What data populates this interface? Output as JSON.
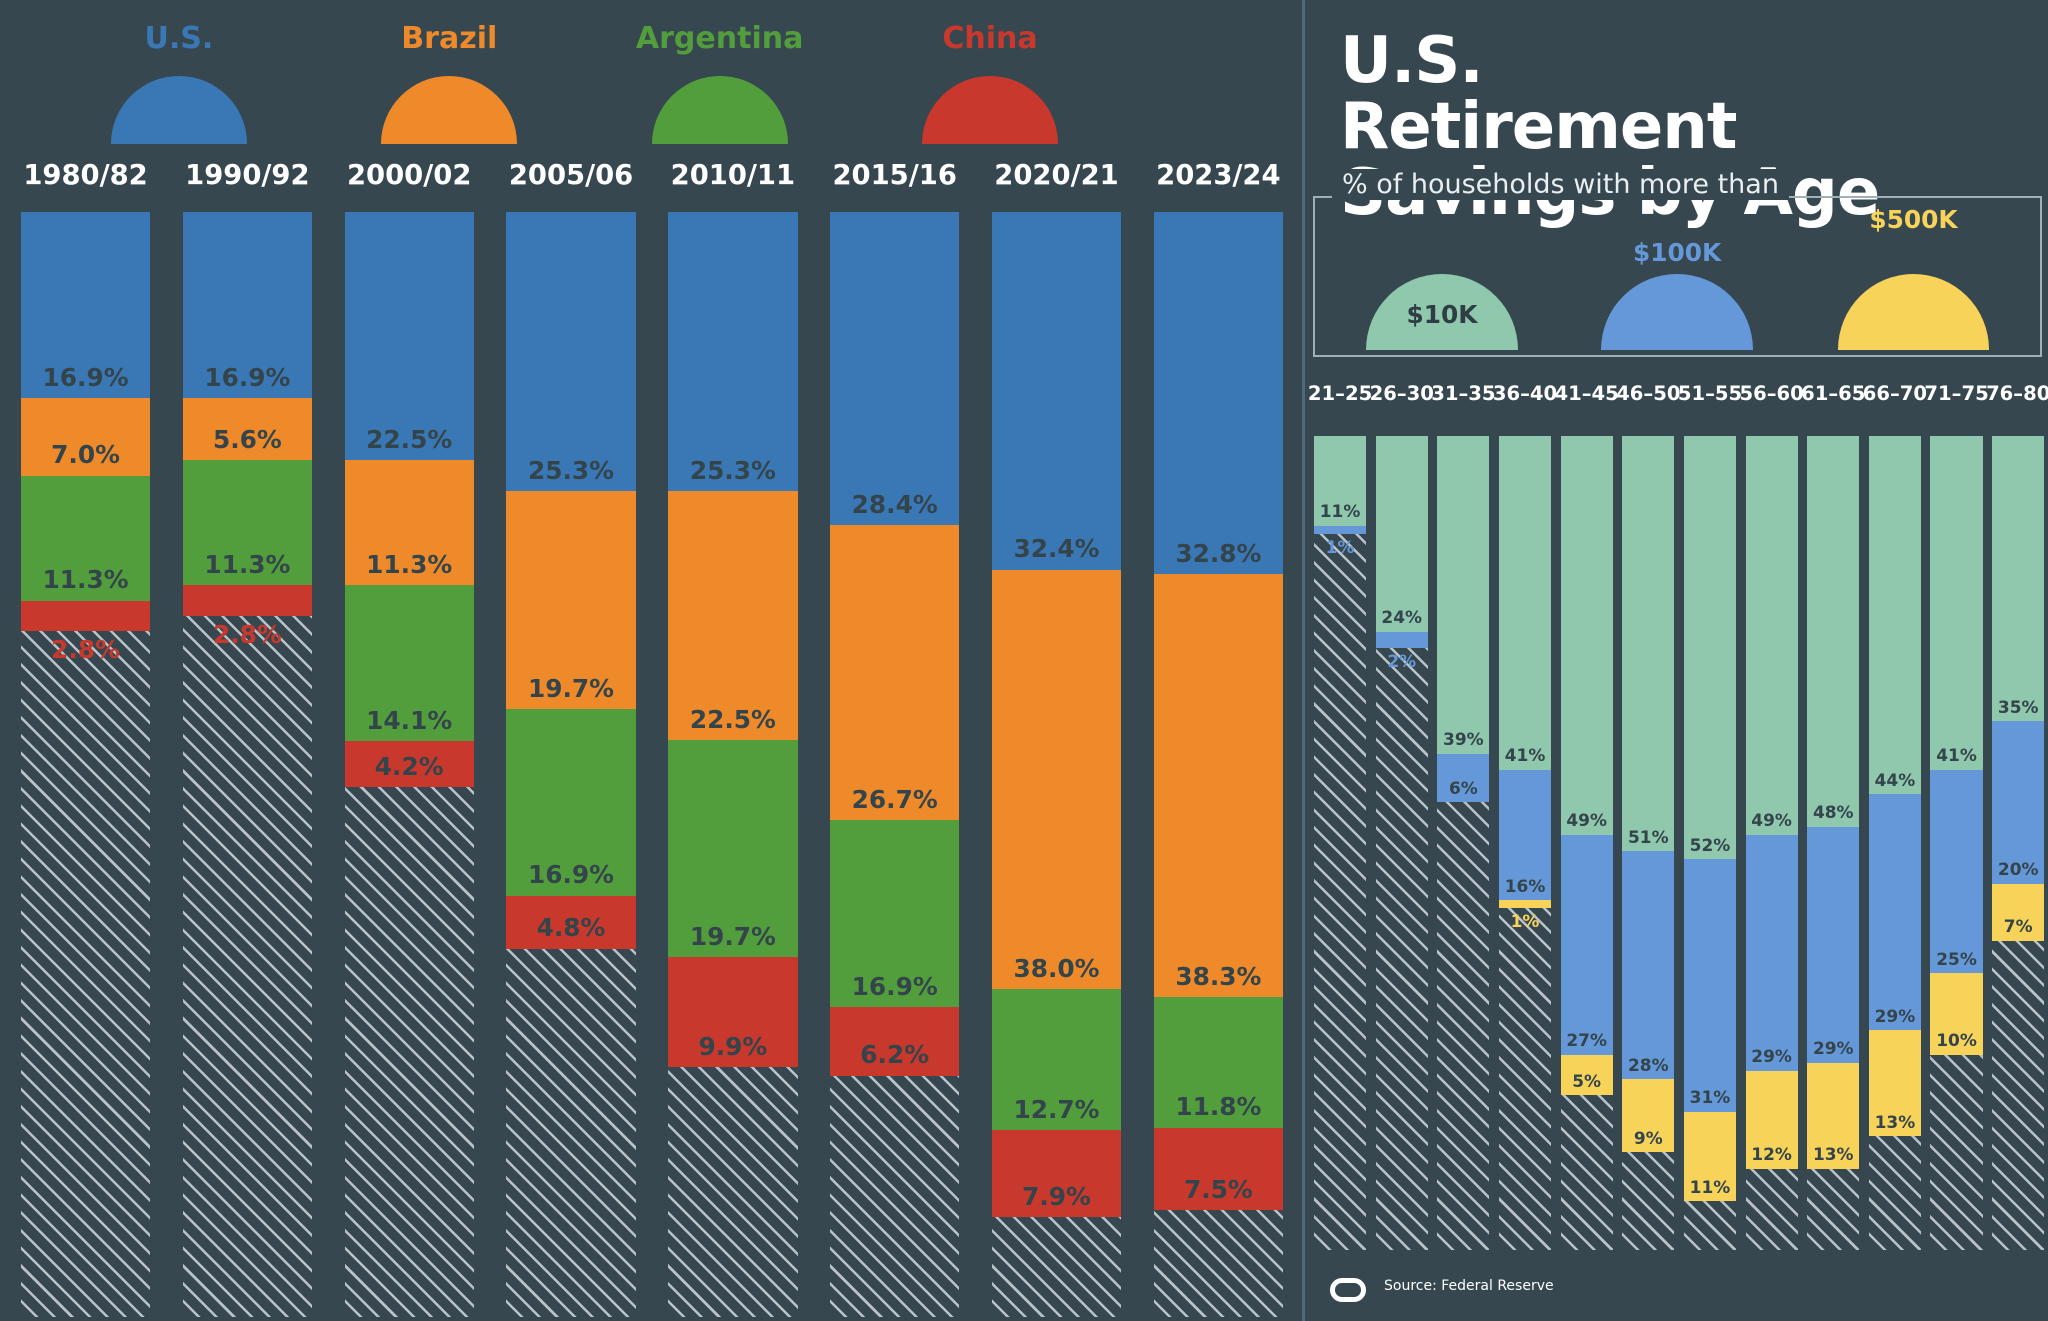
{
  "chart_data": [
    {
      "type": "stacked_bar",
      "categories": [
        "1980/82",
        "1990/92",
        "2000/02",
        "2005/06",
        "2010/11",
        "2015/16",
        "2020/21",
        "2023/24"
      ],
      "series": [
        {
          "name": "U.S.",
          "color": "#3a78b5",
          "values": [
            16.9,
            16.9,
            22.5,
            25.3,
            25.3,
            28.4,
            32.4,
            32.8
          ],
          "value_labels": [
            "16.9%",
            "16.9%",
            "22.5%",
            "25.3%",
            "25.3%",
            "28.4%",
            "32.4%",
            "32.8%"
          ]
        },
        {
          "name": "Brazil",
          "color": "#ee8a2a",
          "values": [
            7.0,
            5.6,
            11.3,
            19.7,
            22.5,
            26.7,
            38.0,
            38.3
          ],
          "value_labels": [
            "7.0%",
            "5.6%",
            "11.3%",
            "19.7%",
            "22.5%",
            "26.7%",
            "38.0%",
            "38.3%"
          ]
        },
        {
          "name": "Argentina",
          "color": "#529e3c",
          "values": [
            11.3,
            11.3,
            14.1,
            16.9,
            19.7,
            16.9,
            12.7,
            11.8
          ],
          "value_labels": [
            "11.3%",
            "11.3%",
            "14.1%",
            "16.9%",
            "19.7%",
            "16.9%",
            "12.7%",
            "11.8%"
          ]
        },
        {
          "name": "China",
          "color": "#c8382c",
          "values": [
            2.8,
            2.8,
            4.2,
            4.8,
            9.9,
            6.2,
            7.9,
            7.5
          ],
          "value_labels": [
            "2.8%",
            "2.8%",
            "4.2%",
            "4.8%",
            "9.9%",
            "6.2%",
            "7.9%",
            "7.5%"
          ]
        }
      ],
      "ylim": [
        0,
        100
      ]
    },
    {
      "type": "stacked_bar",
      "title": "U.S. Retirement Savings by Age",
      "subtitle": "% of households with more than",
      "source": "Source: Federal Reserve",
      "categories": [
        "21–25",
        "26–30",
        "31–35",
        "36–40",
        "41–45",
        "46–50",
        "51–55",
        "56–60",
        "61–65",
        "66–70",
        "71–75",
        "76–80"
      ],
      "series": [
        {
          "name": "$10K",
          "color": "#8fc8ad",
          "values": [
            11,
            24,
            39,
            41,
            49,
            51,
            52,
            49,
            48,
            44,
            41,
            35
          ],
          "value_labels": [
            "11%",
            "24%",
            "39%",
            "41%",
            "49%",
            "51%",
            "52%",
            "49%",
            "48%",
            "44%",
            "41%",
            "35%"
          ]
        },
        {
          "name": "$100K",
          "color": "#6498d8",
          "values": [
            1,
            2,
            6,
            16,
            27,
            28,
            31,
            29,
            29,
            29,
            25,
            20
          ],
          "value_labels": [
            "1%",
            "2%",
            "6%",
            "16%",
            "27%",
            "28%",
            "31%",
            "29%",
            "29%",
            "29%",
            "25%",
            "20%"
          ]
        },
        {
          "name": "$500K",
          "color": "#f7d35a",
          "values": [
            null,
            null,
            null,
            1,
            5,
            9,
            11,
            12,
            13,
            13,
            10,
            7
          ],
          "value_labels": [
            null,
            null,
            null,
            "1%",
            "5%",
            "9%",
            "11%",
            "12%",
            "13%",
            "13%",
            "10%",
            "7%"
          ]
        }
      ],
      "ylim": [
        0,
        100
      ]
    }
  ]
}
